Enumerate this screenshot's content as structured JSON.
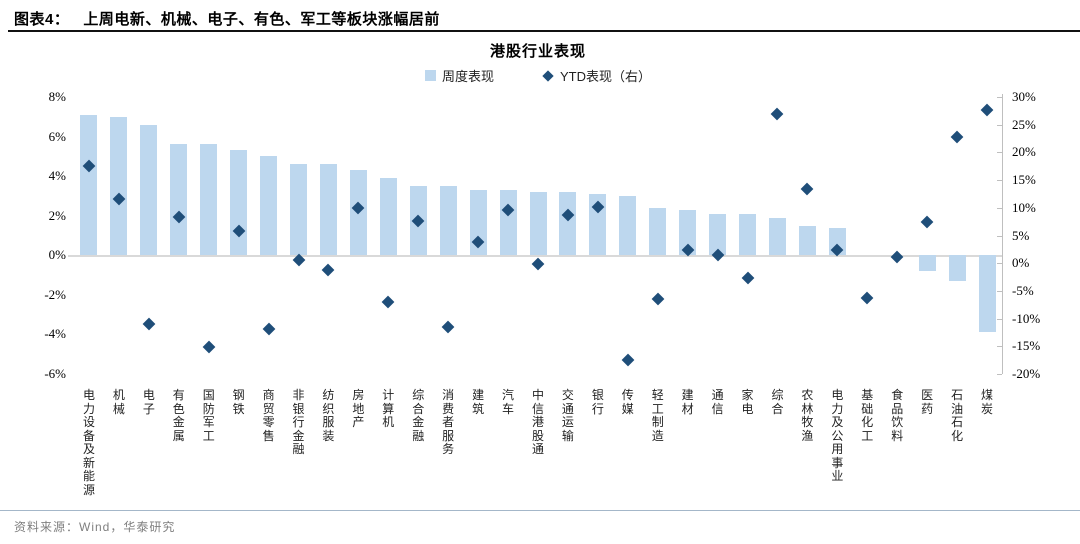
{
  "figure": {
    "title_prefix": "图表4：",
    "title_text": "上周电新、机械、电子、有色、军工等板块涨幅居前",
    "source": "资料来源：Wind，华泰研究"
  },
  "chart_data": {
    "type": "bar+scatter",
    "title": "港股行业表现",
    "legend_position": "top-center",
    "grid": "zero-line-only",
    "legend": [
      {
        "name": "周度表现",
        "marker": "square",
        "color": "#BDD7EE",
        "axis": "left"
      },
      {
        "name": "YTD表现（右）",
        "marker": "diamond",
        "color": "#1F4E79",
        "axis": "right"
      }
    ],
    "categories": [
      "电力设备及新能源",
      "机械",
      "电子",
      "有色金属",
      "国防军工",
      "钢铁",
      "商贸零售",
      "非银行金融",
      "纺织服装",
      "房地产",
      "计算机",
      "综合金融",
      "消费者服务",
      "建筑",
      "汽车",
      "中信港股通",
      "交通运输",
      "银行",
      "传媒",
      "轻工制造",
      "建材",
      "通信",
      "家电",
      "综合",
      "农林牧渔",
      "电力及公用事业",
      "基础化工",
      "食品饮料",
      "医药",
      "石油石化",
      "煤炭"
    ],
    "series": [
      {
        "name": "周度表现",
        "type": "bar",
        "axis": "left",
        "unit": "%",
        "values": [
          7.1,
          7.0,
          6.6,
          5.6,
          5.6,
          5.3,
          5.0,
          4.6,
          4.6,
          4.3,
          3.9,
          3.5,
          3.5,
          3.3,
          3.3,
          3.2,
          3.2,
          3.1,
          3.0,
          2.4,
          2.3,
          2.1,
          2.1,
          1.9,
          1.5,
          1.4,
          0.0,
          0.0,
          -0.8,
          -1.3,
          -3.9
        ]
      },
      {
        "name": "YTD表现（右）",
        "type": "scatter-diamond",
        "axis": "right",
        "unit": "%",
        "values": [
          17.5,
          11.5,
          -11.0,
          8.4,
          -15.2,
          5.8,
          -11.9,
          0.5,
          -1.2,
          10.0,
          -7.0,
          7.6,
          -11.6,
          3.8,
          9.6,
          -0.2,
          8.7,
          10.1,
          -17.4,
          -6.4,
          2.3,
          1.5,
          -2.7,
          26.9,
          13.4,
          2.4,
          -6.3,
          1.1,
          7.5,
          22.7,
          27.7
        ]
      }
    ],
    "left_axis": {
      "max": 8,
      "min": -6,
      "tick_step": 2,
      "tick_labels": [
        "8%",
        "6%",
        "4%",
        "2%",
        "0%",
        "-2%",
        "-4%",
        "-6%"
      ]
    },
    "right_axis": {
      "max": 30,
      "min": -20,
      "tick_step": 5,
      "tick_labels": [
        "30%",
        "25%",
        "20%",
        "15%",
        "10%",
        "5%",
        "0%",
        "-5%",
        "-10%",
        "-15%",
        "-20%"
      ]
    }
  },
  "colors": {
    "bar": "#BDD7EE",
    "diamond": "#1F4E79",
    "zero_gridline": "#D9D9D9",
    "axis_line": "#BFBFBF",
    "source_text": "#7F7F7F"
  }
}
